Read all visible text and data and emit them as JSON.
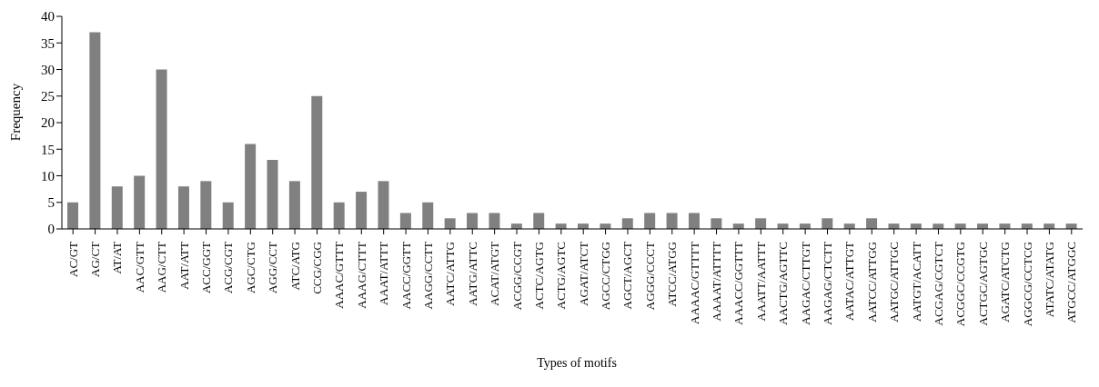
{
  "chart_data": {
    "type": "bar",
    "xlabel": "Types of motifs",
    "ylabel": "Frequency",
    "categories": [
      "AC/GT",
      "AG/CT",
      "AT/AT",
      "AAC/GTT",
      "AAG/CTT",
      "AAT/ATT",
      "ACC/GGT",
      "ACG/CGT",
      "AGC/CTG",
      "AGG/CCT",
      "ATC/ATG",
      "CCG/CGG",
      "AAAC/GTTT",
      "AAAG/CTTT",
      "AAAT/ATTT",
      "AACC/GGTT",
      "AAGG/CCTT",
      "AATC/ATTG",
      "AATG/ATTC",
      "ACAT/ATGT",
      "ACGG/CCGT",
      "ACTC/AGTG",
      "ACTG/AGTC",
      "AGAT/ATCT",
      "AGCC/CTGG",
      "AGCT/AGCT",
      "AGGG/CCCT",
      "ATCC/ATGG",
      "AAAAC/GTTTT",
      "AAAAT/ATTTT",
      "AAACC/GGTTT",
      "AAATT/AATTT",
      "AACTG/AGTTC",
      "AAGAC/CTTGT",
      "AAGAG/CTCTT",
      "AATAC/ATTGT",
      "AATCC/ATTGG",
      "AATGC/ATTGC",
      "AATGT/ACATT",
      "ACGAG/CGTCT",
      "ACGGC/CCGTG",
      "ACTGC/AGTGC",
      "AGATC/ATCTG",
      "AGGCG/CCTCG",
      "ATATC/ATATG",
      "ATGCC/ATGGC"
    ],
    "values": [
      5,
      37,
      8,
      10,
      30,
      8,
      9,
      5,
      16,
      13,
      9,
      25,
      5,
      7,
      9,
      3,
      5,
      2,
      3,
      3,
      1,
      3,
      1,
      1,
      1,
      2,
      3,
      3,
      3,
      2,
      1,
      2,
      1,
      1,
      2,
      1,
      2,
      1,
      1,
      1,
      1,
      1,
      1,
      1,
      1,
      1
    ],
    "color": "#808080",
    "ylim": [
      0,
      40
    ],
    "yticks": [
      0,
      5,
      10,
      15,
      20,
      25,
      30,
      35,
      40
    ],
    "grid": false,
    "legend": false
  }
}
